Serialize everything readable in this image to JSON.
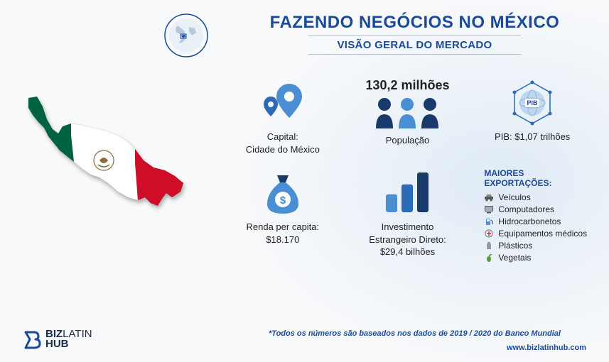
{
  "header": {
    "title": "FAZENDO NEGÓCIOS NO MÉXICO",
    "subtitle": "VISÃO GERAL DO MERCADO"
  },
  "colors": {
    "primary": "#1b4a99",
    "light_blue": "#4a8fd4",
    "mid_blue": "#2d6bb8",
    "dark_blue": "#1a3a6b",
    "text": "#222222",
    "bg": "#f7f9fb",
    "flag_green": "#006341",
    "flag_white": "#ffffff",
    "flag_red": "#ce1126"
  },
  "stats": {
    "capital": {
      "label": "Capital:\nCidade do México"
    },
    "population": {
      "value_top": "130,2 milhões",
      "label": "População"
    },
    "gdp": {
      "badge": "PIB",
      "label": "PIB: $1,07 trilhões"
    },
    "income": {
      "label": "Renda per capita:\n$18.170"
    },
    "fdi": {
      "label": "Investimento\nEstrangeiro Direto:\n$29,4 bilhões",
      "bars": [
        0.45,
        0.7,
        1.0
      ],
      "bar_colors": [
        "#4a8fd4",
        "#2d6bb8",
        "#1a3a6b"
      ]
    }
  },
  "exports": {
    "title": "MAIORES EXPORTAÇÕES:",
    "items": [
      {
        "label": "Veículos",
        "icon": "car"
      },
      {
        "label": "Computadores",
        "icon": "computer"
      },
      {
        "label": "Hidrocarbonetos",
        "icon": "fuel"
      },
      {
        "label": "Equipamentos médicos",
        "icon": "medical"
      },
      {
        "label": "Plásticos",
        "icon": "plastic"
      },
      {
        "label": "Vegetais",
        "icon": "vegetable"
      }
    ]
  },
  "footnote": "*Todos os números são baseados nos dados de 2019 / 2020 do Banco Mundial",
  "url": "www.bizlatinhub.com",
  "logo": {
    "line1": "BIZ",
    "line2": "LATIN",
    "line3": "HUB"
  }
}
